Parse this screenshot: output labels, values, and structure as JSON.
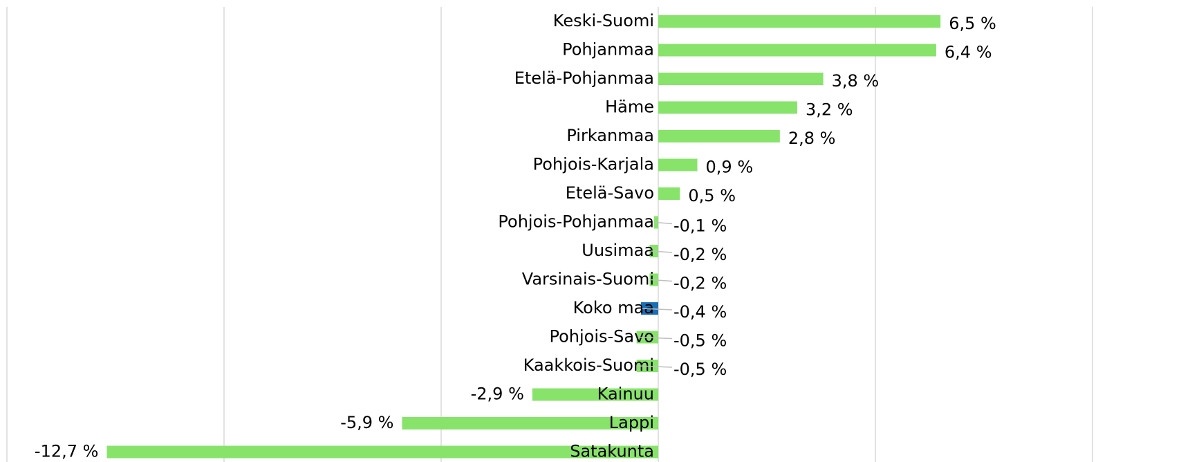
{
  "chart_data": {
    "type": "barh",
    "categories": [
      "Keski-Suomi",
      "Pohjanmaa",
      "Etelä-Pohjanmaa",
      "Häme",
      "Pirkanmaa",
      "Pohjois-Karjala",
      "Etelä-Savo",
      "Pohjois-Pohjanmaa",
      "Uusimaa",
      "Varsinais-Suomi",
      "Koko maa",
      "Pohjois-Savo",
      "Kaakkois-Suomi",
      "Kainuu",
      "Lappi",
      "Satakunta"
    ],
    "values": [
      6.5,
      6.4,
      3.8,
      3.2,
      2.8,
      0.9,
      0.5,
      -0.1,
      -0.2,
      -0.2,
      -0.4,
      -0.5,
      -0.5,
      -2.9,
      -5.9,
      -12.7
    ],
    "value_labels": [
      "6,5 %",
      "6,4 %",
      "3,8 %",
      "3,2 %",
      "2,8 %",
      "0,9 %",
      "0,5 %",
      "-0,1 %",
      "-0,2 %",
      "-0,2 %",
      "-0,4 %",
      "-0,5 %",
      "-0,5 %",
      "-2,9 %",
      "-5,9 %",
      "-12,7 %"
    ],
    "colors": [
      "#88e36b",
      "#88e36b",
      "#88e36b",
      "#88e36b",
      "#88e36b",
      "#88e36b",
      "#88e36b",
      "#88e36b",
      "#88e36b",
      "#88e36b",
      "#1a6eb4",
      "#88e36b",
      "#88e36b",
      "#88e36b",
      "#88e36b",
      "#88e36b"
    ],
    "xlim": [
      -15,
      10
    ],
    "xticks": [
      -15,
      -10,
      -5,
      0,
      5,
      10
    ],
    "grid": true
  }
}
